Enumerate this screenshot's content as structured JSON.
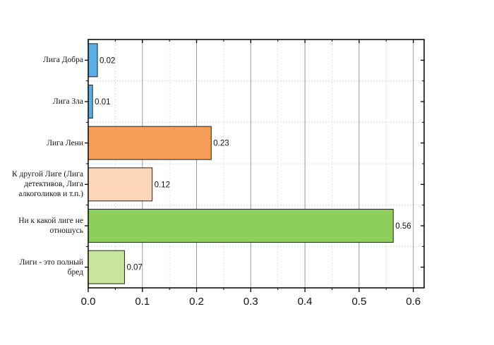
{
  "chart_data": {
    "type": "bar",
    "orientation": "horizontal",
    "categories": [
      "Лига Добра",
      "Лига Зла",
      "Лига Лени",
      "К другой Лиге (Лига детективов, Лига алкоголиков и т.п.)",
      "Ни к какой лиге не отношусь",
      "Лиги - это полный бред"
    ],
    "category_lines": [
      [
        "Лига Добра"
      ],
      [
        "Лига Зла"
      ],
      [
        "Лига Лени"
      ],
      [
        "К другой Лиге (Лига",
        "детективов, Лига",
        "алкоголиков и т.п.)"
      ],
      [
        "Ни к какой лиге не",
        "отношусь"
      ],
      [
        "Лиги - это полный",
        "бред"
      ]
    ],
    "values": [
      0.017,
      0.008,
      0.227,
      0.118,
      0.563,
      0.067
    ],
    "value_labels": [
      "0.02",
      "0.01",
      "0.23",
      "0.12",
      "0.56",
      "0.07"
    ],
    "colors": [
      "#5aaee3",
      "#5aaee3",
      "#f59e57",
      "#fdd5b8",
      "#8ecf5b",
      "#c7e69c"
    ],
    "xlim": [
      0,
      0.62
    ],
    "xticks": [
      "0.0",
      "0.1",
      "0.2",
      "0.3",
      "0.4",
      "0.5",
      "0.6"
    ],
    "grid": true,
    "title": "",
    "xlabel": "",
    "ylabel": ""
  }
}
